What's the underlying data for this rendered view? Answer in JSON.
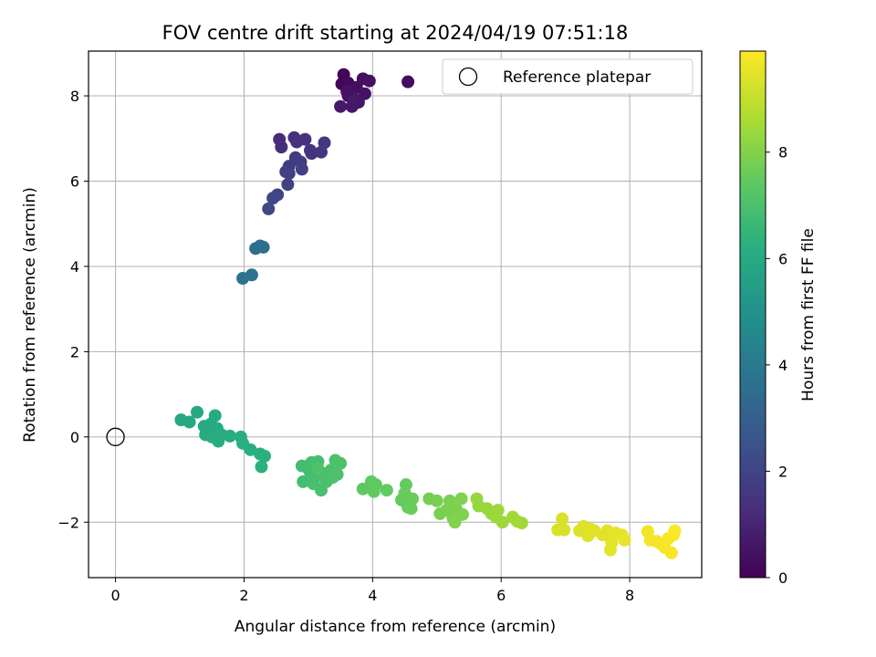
{
  "chart_data": {
    "type": "scatter",
    "title": "FOV centre drift starting at 2024/04/19 07:51:18",
    "xlabel": "Angular distance from reference (arcmin)",
    "ylabel": "Rotation from reference (arcmin)",
    "xlim": [
      -0.42,
      9.12
    ],
    "ylim": [
      -3.3,
      9.05
    ],
    "xticks": [
      0,
      2,
      4,
      6,
      8
    ],
    "yticks": [
      -2,
      0,
      2,
      4,
      6,
      8
    ],
    "xtick_labels": [
      "0",
      "2",
      "4",
      "6",
      "8"
    ],
    "ytick_labels": [
      "−2",
      "0",
      "2",
      "4",
      "6",
      "8"
    ],
    "grid": true,
    "legend": {
      "position": "upper right",
      "entries": [
        {
          "label": "Reference platepar",
          "marker": "open-circle"
        }
      ]
    },
    "reference_point": {
      "x": 0,
      "y": 0
    },
    "colorbar": {
      "label": "Hours from first FF file",
      "colormap": "viridis",
      "range": [
        0,
        9.9
      ],
      "ticks": [
        0,
        2,
        4,
        6,
        8
      ],
      "tick_labels": [
        "0",
        "2",
        "4",
        "6",
        "8"
      ]
    },
    "points": [
      {
        "x": 3.55,
        "y": 8.5,
        "hours": 0.1
      },
      {
        "x": 3.52,
        "y": 8.28,
        "hours": 0.15
      },
      {
        "x": 3.62,
        "y": 8.3,
        "hours": 0.2
      },
      {
        "x": 3.68,
        "y": 8.15,
        "hours": 0.25
      },
      {
        "x": 3.62,
        "y": 8.0,
        "hours": 0.3
      },
      {
        "x": 3.75,
        "y": 8.2,
        "hours": 0.35
      },
      {
        "x": 3.85,
        "y": 8.4,
        "hours": 0.4
      },
      {
        "x": 3.95,
        "y": 8.35,
        "hours": 0.45
      },
      {
        "x": 3.88,
        "y": 8.05,
        "hours": 0.5
      },
      {
        "x": 3.78,
        "y": 7.85,
        "hours": 0.55
      },
      {
        "x": 3.68,
        "y": 7.75,
        "hours": 0.6
      },
      {
        "x": 3.5,
        "y": 7.75,
        "hours": 0.65
      },
      {
        "x": 3.7,
        "y": 7.95,
        "hours": 0.7
      },
      {
        "x": 4.55,
        "y": 8.33,
        "hours": 0.3
      },
      {
        "x": 3.6,
        "y": 8.1,
        "hours": 0.5
      },
      {
        "x": 2.55,
        "y": 6.98,
        "hours": 1.2
      },
      {
        "x": 2.58,
        "y": 6.8,
        "hours": 1.25
      },
      {
        "x": 2.78,
        "y": 7.02,
        "hours": 1.3
      },
      {
        "x": 2.82,
        "y": 6.92,
        "hours": 1.35
      },
      {
        "x": 2.95,
        "y": 6.98,
        "hours": 1.4
      },
      {
        "x": 3.03,
        "y": 6.72,
        "hours": 1.45
      },
      {
        "x": 3.05,
        "y": 6.65,
        "hours": 1.5
      },
      {
        "x": 3.2,
        "y": 6.68,
        "hours": 1.55
      },
      {
        "x": 3.25,
        "y": 6.9,
        "hours": 1.6
      },
      {
        "x": 2.8,
        "y": 6.55,
        "hours": 1.65
      },
      {
        "x": 2.7,
        "y": 6.35,
        "hours": 1.7
      },
      {
        "x": 2.88,
        "y": 6.45,
        "hours": 1.75
      },
      {
        "x": 2.65,
        "y": 6.22,
        "hours": 1.8
      },
      {
        "x": 2.9,
        "y": 6.28,
        "hours": 1.85
      },
      {
        "x": 2.7,
        "y": 6.18,
        "hours": 1.9
      },
      {
        "x": 2.68,
        "y": 5.92,
        "hours": 1.95
      },
      {
        "x": 2.52,
        "y": 5.68,
        "hours": 2.0
      },
      {
        "x": 2.45,
        "y": 5.6,
        "hours": 2.1
      },
      {
        "x": 2.38,
        "y": 5.35,
        "hours": 2.2
      },
      {
        "x": 2.18,
        "y": 4.42,
        "hours": 3.5
      },
      {
        "x": 2.25,
        "y": 4.48,
        "hours": 3.55
      },
      {
        "x": 2.3,
        "y": 4.45,
        "hours": 3.6
      },
      {
        "x": 2.12,
        "y": 3.8,
        "hours": 3.7
      },
      {
        "x": 1.98,
        "y": 3.72,
        "hours": 3.8
      },
      {
        "x": 1.02,
        "y": 0.4,
        "hours": 5.9
      },
      {
        "x": 1.15,
        "y": 0.35,
        "hours": 5.92
      },
      {
        "x": 1.27,
        "y": 0.58,
        "hours": 5.94
      },
      {
        "x": 1.38,
        "y": 0.25,
        "hours": 5.96
      },
      {
        "x": 1.42,
        "y": 0.15,
        "hours": 5.98
      },
      {
        "x": 1.48,
        "y": 0.3,
        "hours": 6.0
      },
      {
        "x": 1.52,
        "y": 0.22,
        "hours": 6.02
      },
      {
        "x": 1.4,
        "y": 0.05,
        "hours": 6.04
      },
      {
        "x": 1.55,
        "y": 0.5,
        "hours": 6.06
      },
      {
        "x": 1.58,
        "y": 0.2,
        "hours": 6.08
      },
      {
        "x": 1.5,
        "y": 0.0,
        "hours": 6.1
      },
      {
        "x": 1.6,
        "y": -0.1,
        "hours": 6.12
      },
      {
        "x": 1.65,
        "y": 0.05,
        "hours": 6.14
      },
      {
        "x": 1.78,
        "y": 0.02,
        "hours": 6.16
      },
      {
        "x": 1.95,
        "y": 0.0,
        "hours": 6.18
      },
      {
        "x": 1.98,
        "y": -0.15,
        "hours": 6.2
      },
      {
        "x": 2.1,
        "y": -0.3,
        "hours": 6.22
      },
      {
        "x": 2.25,
        "y": -0.4,
        "hours": 6.24
      },
      {
        "x": 2.32,
        "y": -0.45,
        "hours": 6.26
      },
      {
        "x": 2.27,
        "y": -0.7,
        "hours": 6.28
      },
      {
        "x": 2.9,
        "y": -0.68,
        "hours": 6.8
      },
      {
        "x": 2.92,
        "y": -1.05,
        "hours": 6.82
      },
      {
        "x": 3.02,
        "y": -0.8,
        "hours": 6.84
      },
      {
        "x": 3.05,
        "y": -0.6,
        "hours": 6.86
      },
      {
        "x": 3.1,
        "y": -0.95,
        "hours": 6.88
      },
      {
        "x": 3.15,
        "y": -0.58,
        "hours": 6.9
      },
      {
        "x": 3.08,
        "y": -1.1,
        "hours": 6.92
      },
      {
        "x": 3.22,
        "y": -0.85,
        "hours": 6.94
      },
      {
        "x": 3.2,
        "y": -1.25,
        "hours": 6.96
      },
      {
        "x": 3.28,
        "y": -1.05,
        "hours": 6.98
      },
      {
        "x": 3.35,
        "y": -0.78,
        "hours": 7.0
      },
      {
        "x": 3.38,
        "y": -0.95,
        "hours": 7.02
      },
      {
        "x": 3.42,
        "y": -0.55,
        "hours": 7.04
      },
      {
        "x": 3.5,
        "y": -0.62,
        "hours": 7.06
      },
      {
        "x": 3.45,
        "y": -0.88,
        "hours": 7.08
      },
      {
        "x": 3.15,
        "y": -0.75,
        "hours": 7.1
      },
      {
        "x": 3.85,
        "y": -1.22,
        "hours": 7.4
      },
      {
        "x": 3.98,
        "y": -1.05,
        "hours": 7.42
      },
      {
        "x": 4.05,
        "y": -1.12,
        "hours": 7.44
      },
      {
        "x": 4.02,
        "y": -1.28,
        "hours": 7.46
      },
      {
        "x": 4.22,
        "y": -1.25,
        "hours": 7.48
      },
      {
        "x": 4.45,
        "y": -1.48,
        "hours": 7.5
      },
      {
        "x": 4.52,
        "y": -1.12,
        "hours": 7.52
      },
      {
        "x": 4.55,
        "y": -1.65,
        "hours": 7.54
      },
      {
        "x": 4.5,
        "y": -1.32,
        "hours": 7.56
      },
      {
        "x": 4.62,
        "y": -1.45,
        "hours": 7.58
      },
      {
        "x": 4.6,
        "y": -1.68,
        "hours": 7.6
      },
      {
        "x": 4.88,
        "y": -1.45,
        "hours": 7.8
      },
      {
        "x": 5.0,
        "y": -1.5,
        "hours": 7.82
      },
      {
        "x": 5.05,
        "y": -1.8,
        "hours": 7.84
      },
      {
        "x": 5.15,
        "y": -1.72,
        "hours": 7.86
      },
      {
        "x": 5.2,
        "y": -1.5,
        "hours": 7.88
      },
      {
        "x": 5.25,
        "y": -1.9,
        "hours": 7.9
      },
      {
        "x": 5.3,
        "y": -1.7,
        "hours": 7.92
      },
      {
        "x": 5.38,
        "y": -1.45,
        "hours": 7.94
      },
      {
        "x": 5.4,
        "y": -1.82,
        "hours": 7.96
      },
      {
        "x": 5.28,
        "y": -2.0,
        "hours": 7.98
      },
      {
        "x": 5.62,
        "y": -1.45,
        "hours": 8.3
      },
      {
        "x": 5.65,
        "y": -1.62,
        "hours": 8.32
      },
      {
        "x": 5.78,
        "y": -1.68,
        "hours": 8.34
      },
      {
        "x": 5.85,
        "y": -1.8,
        "hours": 8.36
      },
      {
        "x": 5.95,
        "y": -1.72,
        "hours": 8.38
      },
      {
        "x": 5.92,
        "y": -1.88,
        "hours": 8.4
      },
      {
        "x": 6.02,
        "y": -2.0,
        "hours": 8.42
      },
      {
        "x": 6.18,
        "y": -1.88,
        "hours": 8.44
      },
      {
        "x": 6.25,
        "y": -1.98,
        "hours": 8.46
      },
      {
        "x": 6.32,
        "y": -2.02,
        "hours": 8.48
      },
      {
        "x": 6.88,
        "y": -2.18,
        "hours": 9.3
      },
      {
        "x": 6.95,
        "y": -1.92,
        "hours": 9.32
      },
      {
        "x": 6.98,
        "y": -2.18,
        "hours": 9.34
      },
      {
        "x": 7.22,
        "y": -2.2,
        "hours": 9.36
      },
      {
        "x": 7.28,
        "y": -2.1,
        "hours": 9.38
      },
      {
        "x": 7.35,
        "y": -2.32,
        "hours": 9.4
      },
      {
        "x": 7.38,
        "y": -2.15,
        "hours": 9.42
      },
      {
        "x": 7.45,
        "y": -2.2,
        "hours": 9.44
      },
      {
        "x": 7.58,
        "y": -2.3,
        "hours": 9.46
      },
      {
        "x": 7.65,
        "y": -2.2,
        "hours": 9.48
      },
      {
        "x": 7.72,
        "y": -2.48,
        "hours": 9.5
      },
      {
        "x": 7.7,
        "y": -2.65,
        "hours": 9.52
      },
      {
        "x": 7.78,
        "y": -2.25,
        "hours": 9.54
      },
      {
        "x": 7.88,
        "y": -2.3,
        "hours": 9.56
      },
      {
        "x": 7.92,
        "y": -2.42,
        "hours": 9.58
      },
      {
        "x": 8.28,
        "y": -2.22,
        "hours": 9.7
      },
      {
        "x": 8.32,
        "y": -2.42,
        "hours": 9.72
      },
      {
        "x": 8.42,
        "y": -2.45,
        "hours": 9.74
      },
      {
        "x": 8.48,
        "y": -2.5,
        "hours": 9.76
      },
      {
        "x": 8.55,
        "y": -2.6,
        "hours": 9.78
      },
      {
        "x": 8.6,
        "y": -2.38,
        "hours": 9.8
      },
      {
        "x": 8.65,
        "y": -2.72,
        "hours": 9.82
      },
      {
        "x": 8.68,
        "y": -2.3,
        "hours": 9.84
      },
      {
        "x": 8.7,
        "y": -2.2,
        "hours": 9.86
      }
    ]
  }
}
